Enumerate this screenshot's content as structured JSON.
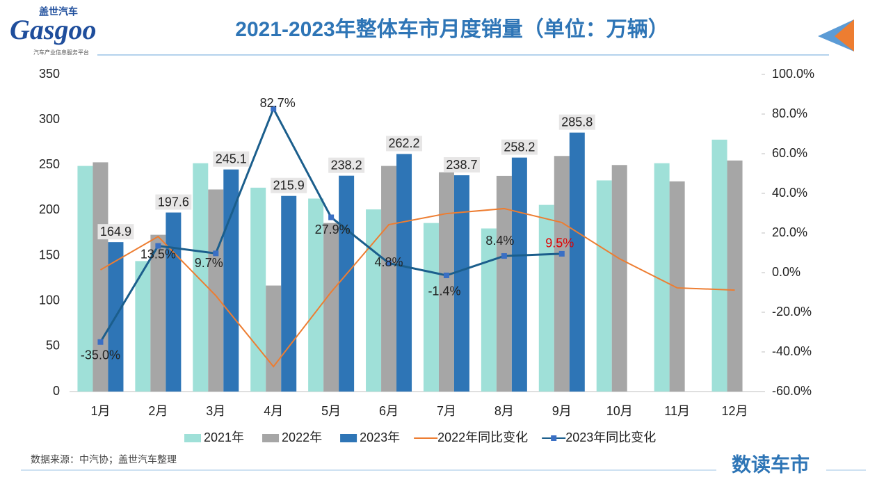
{
  "header": {
    "logo": "Gasgoo",
    "logo_cn": "盖世汽车",
    "logo_sub": "汽车产业信息服务平台"
  },
  "footer": {
    "source": "数据来源：中汽协；盖世汽车整理",
    "brand": "数读车市"
  },
  "chart_data": {
    "type": "bar-line",
    "title": "2021-2023年整体车市月度销量（单位：万辆）",
    "categories": [
      "1月",
      "2月",
      "3月",
      "4月",
      "5月",
      "6月",
      "7月",
      "8月",
      "9月",
      "10月",
      "11月",
      "12月"
    ],
    "series": [
      {
        "name": "2021年",
        "type": "bar",
        "color": "#9fe0d8",
        "values": [
          249,
          144,
          252,
          225,
          213,
          201,
          186,
          180,
          206,
          233,
          252,
          278
        ]
      },
      {
        "name": "2022年",
        "type": "bar",
        "color": "#a6a6a6",
        "values": [
          253,
          173,
          223,
          117,
          186,
          249,
          242,
          238,
          260,
          250,
          232,
          255
        ]
      },
      {
        "name": "2023年",
        "type": "bar",
        "color": "#2e75b6",
        "values": [
          164.9,
          197.6,
          245.1,
          215.9,
          238.2,
          262.2,
          238.7,
          258.2,
          285.8,
          null,
          null,
          null
        ],
        "labels": true
      },
      {
        "name": "2022年同比变化",
        "type": "line",
        "axis": "y2",
        "color": "#ed7d31",
        "values": [
          1.4,
          18.2,
          -11.6,
          -47.4,
          -9.8,
          24.2,
          29.8,
          32.3,
          25.3,
          7.0,
          -7.7,
          -8.8
        ]
      },
      {
        "name": "2023年同比变化",
        "type": "line",
        "axis": "y2",
        "color": "#1b5e8c",
        "marker_color": "#3a6fc4",
        "values": [
          -35.0,
          13.5,
          9.7,
          82.7,
          27.9,
          4.8,
          -1.4,
          8.4,
          9.5,
          null,
          null,
          null
        ],
        "value_labels": [
          "-35.0%",
          "13.5%",
          "9.7%",
          "82.7%",
          "27.9%",
          "4.8%",
          "-1.4%",
          "8.4%",
          "9.5%",
          null,
          null,
          null
        ],
        "highlight_color": "#e00000"
      }
    ],
    "ylim": [
      0,
      350
    ],
    "yticks": [
      0,
      50,
      100,
      150,
      200,
      250,
      300,
      350
    ],
    "y2lim": [
      -60,
      100
    ],
    "y2ticks": [
      {
        "value": -60,
        "label": "-60.0%"
      },
      {
        "value": -40,
        "label": "-40.0%"
      },
      {
        "value": -20,
        "label": "-20.0%"
      },
      {
        "value": 0,
        "label": "0.0%"
      },
      {
        "value": 20,
        "label": "20.0%"
      },
      {
        "value": 40,
        "label": "40.0%"
      },
      {
        "value": 60,
        "label": "60.0%"
      },
      {
        "value": 80,
        "label": "80.0%"
      },
      {
        "value": 100,
        "label": "100.0%"
      }
    ],
    "grid": false,
    "legend": "bottom"
  }
}
